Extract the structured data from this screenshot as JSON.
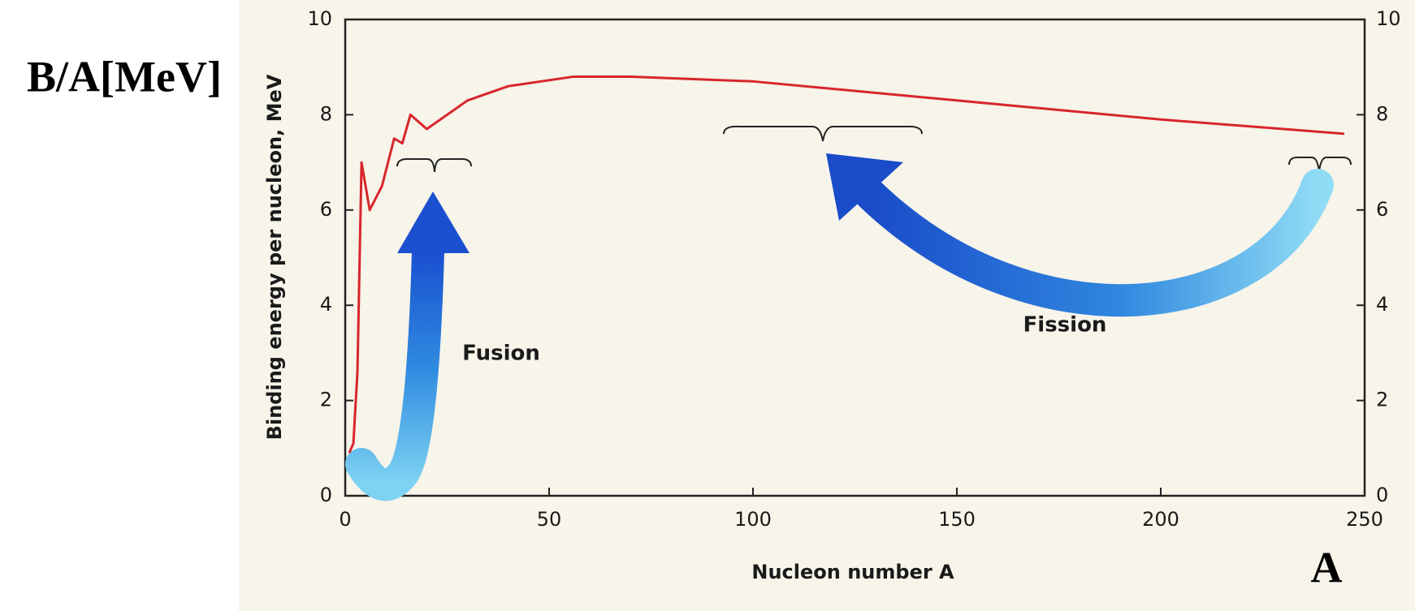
{
  "chart_data": {
    "type": "line",
    "outer_y_label": "B/A[MeV]",
    "corner_label": "A",
    "y_label": "Binding energy per nucleon, MeV",
    "x_label": "Nucleon number A",
    "annotations": [
      "Fusion",
      "Fission"
    ],
    "x": [
      1,
      2,
      3,
      4,
      6,
      9,
      12,
      14,
      16,
      20,
      30,
      40,
      56,
      70,
      100,
      150,
      200,
      245
    ],
    "values": [
      0.9,
      1.1,
      2.6,
      7.0,
      6.0,
      6.5,
      7.5,
      7.4,
      8.0,
      7.7,
      8.3,
      8.6,
      8.8,
      8.8,
      8.7,
      8.3,
      7.9,
      7.6
    ],
    "color": "#d8262b",
    "xlim": [
      0,
      250
    ],
    "xticks": [
      0,
      50,
      100,
      150,
      200,
      250
    ],
    "ylim": [
      0,
      10
    ],
    "yticks": [
      0,
      2,
      4,
      6,
      8,
      10
    ],
    "y2lim": [
      0,
      10
    ],
    "y2ticks": [
      0,
      2,
      4,
      6,
      8,
      10
    ]
  }
}
